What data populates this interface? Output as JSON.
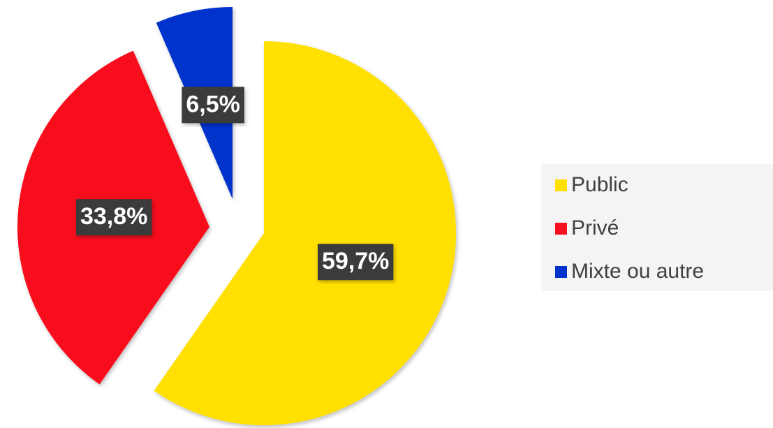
{
  "chart_data": {
    "type": "pie",
    "categories": [
      "Public",
      "Privé",
      "Mixte ou autre"
    ],
    "values": [
      59.7,
      33.8,
      6.5
    ],
    "value_labels": [
      "59,7%",
      "33,8%",
      "6,5%"
    ],
    "colors": [
      "#FFE000",
      "#F7101F",
      "#0033CC"
    ],
    "legend": "right"
  }
}
